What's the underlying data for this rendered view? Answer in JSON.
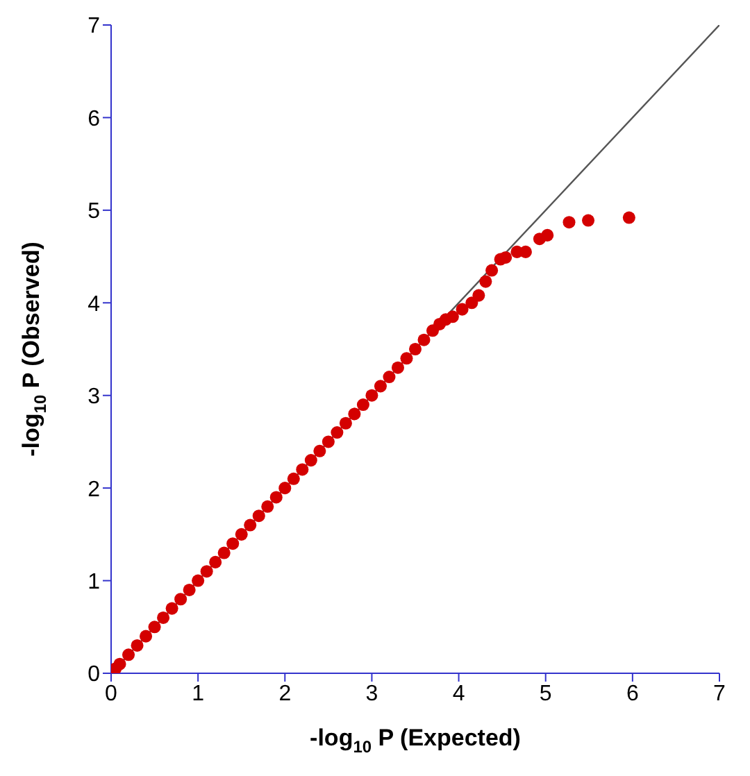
{
  "chart_data": {
    "type": "scatter",
    "xlabel": "-log$_{10}$ P (Expected)",
    "ylabel": "-log$_{10}$ P (Observed)",
    "xlim": [
      0,
      7
    ],
    "ylim": [
      0,
      7
    ],
    "xticks": [
      0,
      1,
      2,
      3,
      4,
      5,
      6,
      7
    ],
    "yticks": [
      0,
      1,
      2,
      3,
      4,
      5,
      6,
      7
    ],
    "grid": false,
    "marker": "circle",
    "series": [
      {
        "color": "#d40000",
        "x": [
          0.05,
          0.1,
          0.2,
          0.3,
          0.4,
          0.5,
          0.6,
          0.7,
          0.8,
          0.9,
          1.0,
          1.1,
          1.2,
          1.3,
          1.4,
          1.5,
          1.6,
          1.7,
          1.8,
          1.9,
          2.0,
          2.1,
          2.2,
          2.3,
          2.4,
          2.5,
          2.6,
          2.7,
          2.8,
          2.9,
          3.0,
          3.1,
          3.2,
          3.3,
          3.4,
          3.5,
          3.6,
          3.7,
          3.78,
          3.85,
          3.93,
          4.04,
          4.15,
          4.23,
          4.31,
          4.38,
          4.48,
          4.54,
          4.67,
          4.77,
          4.93,
          5.02,
          5.27,
          5.49,
          5.96
        ],
        "values": [
          0.05,
          0.1,
          0.2,
          0.3,
          0.4,
          0.5,
          0.6,
          0.7,
          0.8,
          0.9,
          1.0,
          1.1,
          1.2,
          1.3,
          1.4,
          1.5,
          1.6,
          1.7,
          1.8,
          1.9,
          2.0,
          2.1,
          2.2,
          2.3,
          2.4,
          2.5,
          2.6,
          2.7,
          2.8,
          2.9,
          3.0,
          3.1,
          3.2,
          3.3,
          3.4,
          3.5,
          3.6,
          3.7,
          3.77,
          3.82,
          3.85,
          3.93,
          4.0,
          4.08,
          4.23,
          4.35,
          4.47,
          4.49,
          4.55,
          4.55,
          4.69,
          4.73,
          4.87,
          4.89,
          4.92
        ]
      },
      {
        "type": "line",
        "marker": "none",
        "color": "#555555",
        "x": [
          0,
          7
        ],
        "values": [
          0,
          7
        ]
      }
    ]
  }
}
